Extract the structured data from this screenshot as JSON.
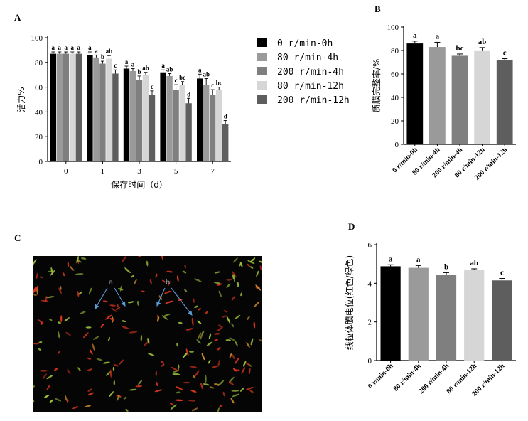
{
  "colors": {
    "series": [
      "#000000",
      "#9a9a9a",
      "#7f7f7f",
      "#d6d6d6",
      "#5e5e5e"
    ],
    "arrow": "#5b9bd5",
    "micro_bg": "#050505",
    "cell_red": "#e0361f",
    "cell_green": "#9bbf3a"
  },
  "panels": {
    "A": "A",
    "B": "B",
    "C": "C",
    "D": "D"
  },
  "micrograph": {
    "label_a": "a",
    "label_b": "b"
  },
  "chart_data": [
    {
      "id": "A",
      "type": "bar",
      "title": "",
      "xlabel": "保存时间（d）",
      "ylabel": "活力%",
      "ylim": [
        0,
        100
      ],
      "yticks": [
        0,
        20,
        40,
        60,
        80,
        100
      ],
      "categories": [
        "0",
        "1",
        "3",
        "5",
        "7"
      ],
      "legend_placement": "right",
      "series": [
        {
          "name": "0 r/min-0h",
          "values": [
            87,
            86,
            75,
            72,
            67
          ],
          "errors": [
            1.5,
            2.5,
            2,
            2,
            3.5
          ],
          "sig": [
            "a",
            "a",
            "a",
            "a",
            "a"
          ]
        },
        {
          "name": "80 r/min-4h",
          "values": [
            87,
            84,
            73,
            69,
            62
          ],
          "errors": [
            1.5,
            2,
            2,
            2,
            5
          ],
          "sig": [
            "a",
            "a",
            "a",
            "ab",
            "ab"
          ]
        },
        {
          "name": "200 r/min-4h",
          "values": [
            87,
            79,
            66,
            58,
            54
          ],
          "errors": [
            1.5,
            2,
            3,
            4,
            4
          ],
          "sig": [
            "a",
            "b",
            "b",
            "c",
            "c"
          ]
        },
        {
          "name": "80 r/min-12h",
          "values": [
            87,
            83,
            70,
            62,
            58
          ],
          "errors": [
            1.5,
            2.5,
            2,
            2.5,
            2
          ],
          "sig": [
            "a",
            "ab",
            "ab",
            "bc",
            "bc"
          ]
        },
        {
          "name": "200 r/min-12h",
          "values": [
            87,
            71,
            54,
            47,
            30
          ],
          "errors": [
            1.5,
            3,
            3,
            4,
            3
          ],
          "sig": [
            "a",
            "c",
            "c",
            "d",
            "d"
          ]
        }
      ]
    },
    {
      "id": "B",
      "type": "bar",
      "title": "",
      "xlabel": "",
      "ylabel": "质膜完整率/%",
      "ylim": [
        0,
        100
      ],
      "yticks": [
        0,
        20,
        40,
        60,
        80,
        100
      ],
      "categories": [
        "0 r/min-0h",
        "80 r/min-4h",
        "200 r/min-4h",
        "80 r/min-12h",
        "200 r/min-12h"
      ],
      "values": [
        86,
        83,
        75.5,
        79.5,
        72
      ],
      "errors": [
        2,
        4,
        1.5,
        3,
        1
      ],
      "sig": [
        "a",
        "a",
        "bc",
        "ab",
        "c"
      ]
    },
    {
      "id": "D",
      "type": "bar",
      "title": "",
      "xlabel": "",
      "ylabel": "线粒体膜电位(红色/绿色)",
      "ylim": [
        0,
        6
      ],
      "yticks": [
        0,
        2,
        4,
        6
      ],
      "categories": [
        "0 r/min-0h",
        "80 r/min-4h",
        "200 r/min-4h",
        "80 r/min-12h",
        "200 r/min-12h"
      ],
      "values": [
        4.88,
        4.8,
        4.45,
        4.7,
        4.15
      ],
      "errors": [
        0.08,
        0.12,
        0.1,
        0.05,
        0.1
      ],
      "sig": [
        "a",
        "a",
        "b",
        "ab",
        "c"
      ]
    }
  ]
}
